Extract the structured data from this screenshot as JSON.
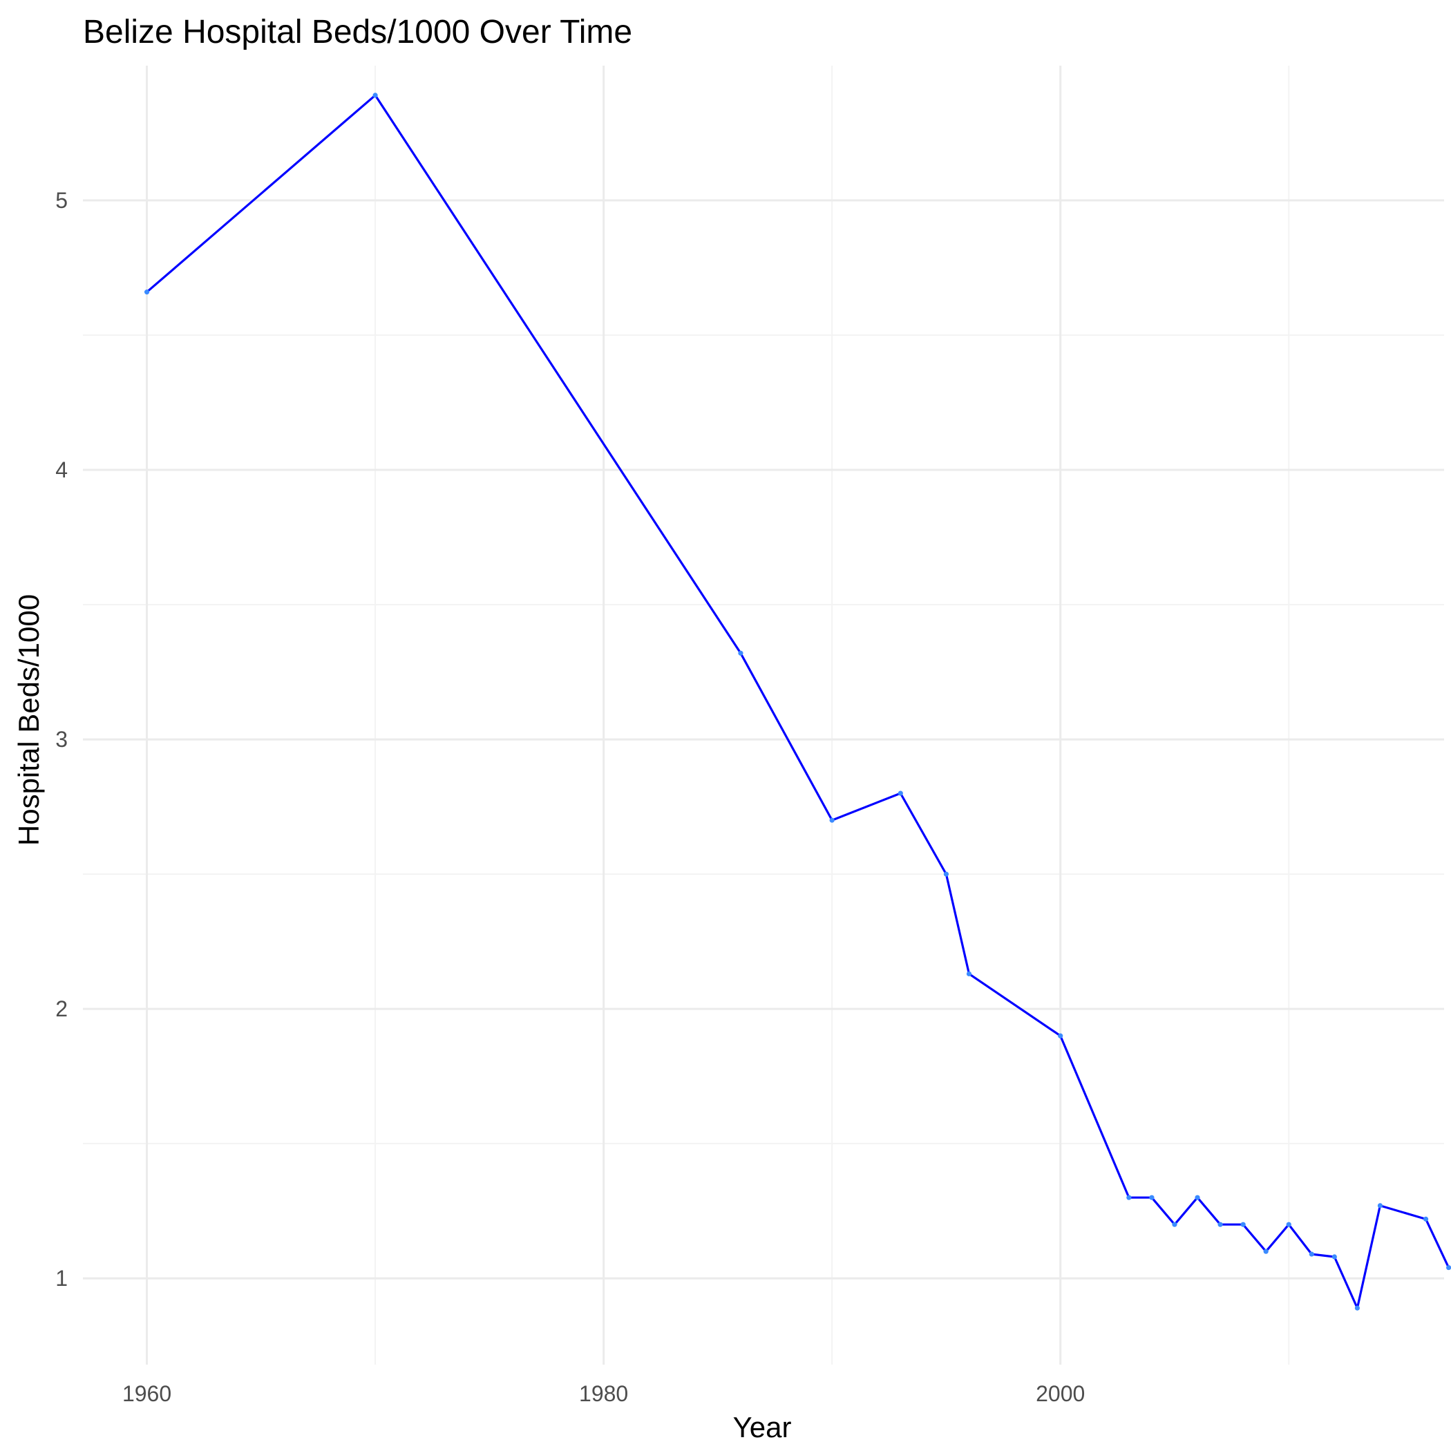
{
  "chart_data": {
    "type": "line",
    "title": "Belize Hospital Beds/1000 Over Time",
    "xlabel": "Year",
    "ylabel": "Hospital Beds/1000",
    "xlim": [
      1957.2,
      2016.8
    ],
    "ylim": [
      0.68,
      5.5
    ],
    "x_ticks": [
      1960,
      1980,
      2000
    ],
    "x_minor_ticks": [
      1970,
      1990,
      2010
    ],
    "y_ticks": [
      1,
      2,
      3,
      4,
      5
    ],
    "y_minor_ticks": [
      1.5,
      2.5,
      3.5,
      4.5
    ],
    "grid": true,
    "line_color": "#0000ff",
    "point_color": "#3b8bff",
    "series": [
      {
        "x": [
          1960,
          1970,
          1986,
          1990,
          1993,
          1995,
          1996,
          2000,
          2003,
          2004,
          2005,
          2006,
          2007,
          2008,
          2009,
          2010,
          2011,
          2012,
          2013,
          2014,
          2016,
          2017
        ],
        "y": [
          4.66,
          5.39,
          3.32,
          2.7,
          2.8,
          2.5,
          2.13,
          1.9,
          1.3,
          1.3,
          1.2,
          1.3,
          1.2,
          1.2,
          1.1,
          1.2,
          1.09,
          1.08,
          0.89,
          1.27,
          1.22,
          1.04
        ]
      }
    ]
  }
}
